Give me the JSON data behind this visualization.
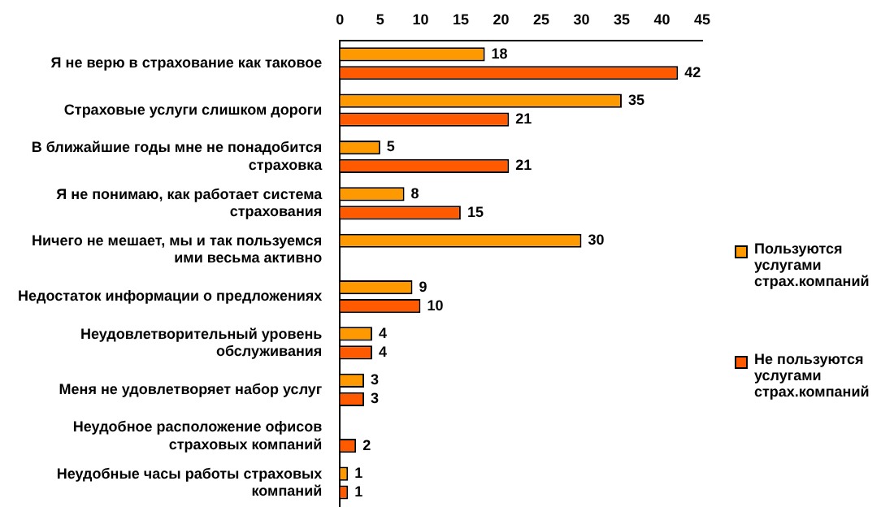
{
  "chart_data": {
    "type": "bar",
    "orientation": "horizontal",
    "categories": [
      "Я не верю в страхование как таковое",
      "Страховые услуги слишком дороги",
      "В ближайшие годы мне не понадобится страховка",
      "Я не понимаю, как работает система страхования",
      "Ничего не мешает, мы и так пользуемся ими весьма активно",
      "Недостаток информации о предложениях",
      "Неудовлетворительный уровень обслуживания",
      "Меня не удовлетворяет набор услуг",
      "Неудобное расположение офисов страховых компаний",
      "Неудобные часы работы страховых компаний"
    ],
    "series": [
      {
        "name": "Пользуются услугами страх.компаний",
        "color": "#ff9900",
        "values": [
          18,
          35,
          5,
          8,
          30,
          9,
          4,
          3,
          null,
          1
        ]
      },
      {
        "name": "Не пользуются услугами страх.компаний",
        "color": "#ff5a00",
        "values": [
          42,
          21,
          21,
          15,
          null,
          10,
          4,
          3,
          2,
          1
        ]
      }
    ],
    "xlim": [
      0,
      45
    ],
    "xticks": [
      0,
      5,
      10,
      15,
      20,
      25,
      30,
      35,
      40,
      45
    ],
    "grid": false,
    "legend": "right",
    "data_labels": true
  }
}
